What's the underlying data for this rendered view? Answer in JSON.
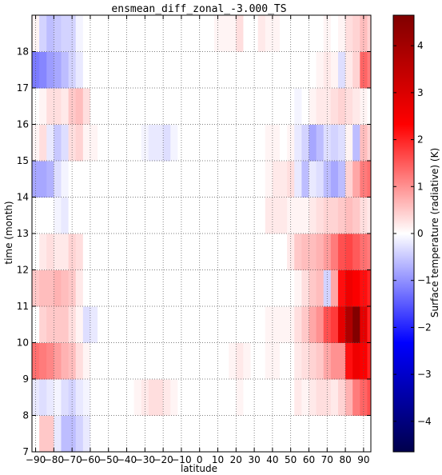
{
  "chart_data": {
    "type": "heatmap",
    "title": "ensmean_diff_zonal_-3.000_TS",
    "xlabel": "latitude",
    "ylabel": "time (month)",
    "colorbar_label": "Surface temperature (radiative) (K)",
    "colormap": "seismic",
    "colormap_stops": [
      "#00004c",
      "#0000ff",
      "#ffffff",
      "#ff0000",
      "#800000"
    ],
    "clim": [
      -4.65,
      4.65
    ],
    "xlim": [
      -92,
      94
    ],
    "ylim": [
      7,
      19
    ],
    "x_edges": [
      -92,
      -88,
      -84,
      -80,
      -76,
      -72,
      -68,
      -64,
      -60,
      -56,
      -52,
      -48,
      -44,
      -40,
      -36,
      -32,
      -28,
      -24,
      -20,
      -16,
      -12,
      -8,
      -4,
      0,
      4,
      8,
      12,
      16,
      20,
      24,
      28,
      32,
      36,
      40,
      44,
      48,
      52,
      56,
      60,
      64,
      68,
      72,
      76,
      80,
      84,
      88,
      92,
      94
    ],
    "y_edges": [
      7,
      8,
      9,
      10,
      11,
      12,
      13,
      14,
      15,
      16,
      17,
      18,
      19
    ],
    "x_ticks": [
      -90,
      -80,
      -70,
      -60,
      -50,
      -40,
      -30,
      -20,
      -10,
      0,
      10,
      20,
      30,
      40,
      50,
      60,
      70,
      80,
      90
    ],
    "x_tick_labels": [
      "−90",
      "−80",
      "−70",
      "−60",
      "−50",
      "−40",
      "−30",
      "−20",
      "−10",
      "0",
      "10",
      "20",
      "30",
      "40",
      "50",
      "60",
      "70",
      "80",
      "90"
    ],
    "y_ticks": [
      7,
      8,
      9,
      10,
      11,
      12,
      13,
      14,
      15,
      16,
      17,
      18
    ],
    "y_tick_labels": [
      "7",
      "8",
      "9",
      "10",
      "11",
      "12",
      "13",
      "14",
      "15",
      "16",
      "17",
      "18"
    ],
    "colorbar_ticks": [
      -4,
      -3,
      -2,
      -1,
      0,
      1,
      2,
      3,
      4
    ],
    "colorbar_tick_labels": [
      "−4",
      "−3",
      "−2",
      "−1",
      "0",
      "1",
      "2",
      "3",
      "4"
    ],
    "grid": true,
    "rows": [
      [
        0,
        0.5,
        0.5,
        -0.2,
        -0.6,
        -0.6,
        -0.4,
        -0.2,
        0,
        0,
        0,
        0,
        0,
        0,
        0,
        0,
        0,
        0,
        0,
        0,
        0,
        0,
        0,
        0,
        0,
        0,
        0,
        0,
        0,
        0,
        0,
        0,
        0,
        0,
        0,
        0,
        0,
        0,
        0,
        0,
        0,
        0,
        0,
        0,
        0,
        0,
        0
      ],
      [
        -0.2,
        -0.3,
        -0.2,
        -0.1,
        -0.3,
        -0.4,
        -0.2,
        -0.1,
        0,
        0,
        0,
        0,
        0,
        0,
        0.1,
        0.2,
        0.3,
        0.3,
        0.2,
        0.1,
        0,
        0,
        0,
        0,
        0,
        0,
        0,
        0,
        0.1,
        0,
        0,
        0,
        0,
        0,
        0,
        0,
        0.2,
        0.1,
        0.2,
        0.3,
        0.3,
        0.2,
        0.4,
        0.7,
        1.2,
        1.4,
        1.6
      ],
      [
        1.3,
        1.2,
        1.1,
        0.9,
        0.7,
        0.6,
        0.3,
        0.1,
        0,
        0,
        0,
        0,
        0,
        0,
        0,
        0,
        0,
        0,
        0,
        0,
        0,
        0,
        0,
        0,
        0,
        0,
        0,
        0.1,
        0.2,
        0.1,
        0,
        0,
        0.1,
        0.1,
        0,
        0,
        0.2,
        0.3,
        0.4,
        0.5,
        0.8,
        1.0,
        1.0,
        2.2,
        2.6,
        2.4,
        2.0
      ],
      [
        0,
        0.4,
        0.5,
        0.5,
        0.5,
        0.3,
        0.1,
        -0.3,
        -0.2,
        0,
        0,
        0,
        0,
        0,
        0,
        0,
        0,
        0,
        0,
        0,
        0,
        0,
        0,
        0,
        0,
        0,
        0,
        0,
        0,
        0,
        0,
        0,
        0.1,
        0.1,
        0.1,
        0.1,
        0.3,
        0.5,
        0.8,
        1.0,
        1.6,
        1.8,
        2.8,
        3.8,
        4.6,
        2.8,
        2.0
      ],
      [
        0.5,
        0.6,
        0.6,
        0.7,
        0.6,
        0.5,
        0.2,
        0,
        0,
        0,
        0,
        0,
        0,
        0,
        0,
        0,
        0,
        0,
        0,
        0,
        0,
        0,
        0,
        0,
        0,
        0,
        0,
        0,
        0,
        0,
        0,
        0,
        0,
        0,
        0,
        0,
        0.1,
        0.3,
        0.5,
        0.6,
        -0.4,
        0.8,
        2.2,
        2.6,
        2.4,
        2.2,
        2.0
      ],
      [
        0,
        0.2,
        0.3,
        0.2,
        0.2,
        0.4,
        0.3,
        0,
        0,
        0,
        0,
        0,
        0,
        0,
        0,
        0,
        0,
        0,
        0,
        0,
        0,
        0,
        0,
        0,
        0,
        0,
        0,
        0,
        0,
        0,
        0,
        0,
        0,
        0,
        0,
        0.2,
        0.5,
        0.6,
        0.6,
        0.7,
        0.9,
        1.2,
        1.6,
        1.7,
        1.5,
        1.3,
        1.2
      ],
      [
        0,
        0,
        0,
        -0.1,
        -0.2,
        0,
        0,
        0,
        0,
        0,
        0,
        0,
        0,
        0,
        0,
        0,
        0,
        0,
        0,
        0,
        0,
        0,
        0,
        0,
        0,
        0,
        0,
        0,
        0,
        0,
        0,
        0,
        0.2,
        0.2,
        0.2,
        0.1,
        0.1,
        0.1,
        0.2,
        0.3,
        0.4,
        0.4,
        0.5,
        0.6,
        0.5,
        0.3,
        0.2
      ],
      [
        -0.8,
        -0.8,
        -0.7,
        -0.3,
        -0.1,
        0,
        0,
        0,
        0,
        0,
        0,
        0,
        0,
        0,
        0,
        0,
        0,
        0,
        0,
        0,
        0,
        0,
        0,
        0,
        0,
        0,
        0,
        0,
        0,
        0,
        0,
        0,
        0.1,
        0.2,
        0.2,
        0.3,
        -0.2,
        -0.6,
        -0.2,
        -0.3,
        -0.6,
        -0.8,
        -0.6,
        0.4,
        0.8,
        1.2,
        1.3
      ],
      [
        0.1,
        0.3,
        -0.2,
        -0.5,
        -0.3,
        0.3,
        0.4,
        0.1,
        0.1,
        0,
        0,
        0,
        0,
        0,
        0,
        -0.1,
        -0.2,
        -0.2,
        -0.3,
        -0.1,
        0,
        0,
        0,
        0,
        0,
        0,
        0,
        0,
        0,
        0,
        0,
        0,
        0.1,
        0.1,
        0,
        0.1,
        -0.2,
        -0.4,
        -0.8,
        -0.6,
        -0.3,
        -0.4,
        -0.3,
        0.1,
        -0.6,
        0.6,
        0.4
      ],
      [
        0,
        0.1,
        0.3,
        0.3,
        0.2,
        0.5,
        0.6,
        0.3,
        0,
        0,
        0,
        0,
        0,
        0,
        0,
        0,
        0,
        0,
        0,
        0,
        0,
        0,
        0,
        0,
        0,
        0,
        0,
        0,
        0,
        0,
        0,
        0,
        0,
        0,
        0,
        0,
        -0.1,
        0,
        0.1,
        0.2,
        0.2,
        0.3,
        0.4,
        0.3,
        0.2,
        0.1,
        0
      ],
      [
        -1.2,
        -1.1,
        -0.9,
        -0.8,
        -0.6,
        -0.4,
        -0.2,
        0,
        0,
        0,
        0,
        0,
        0,
        0,
        0,
        0,
        0,
        0,
        0,
        0,
        0,
        0,
        0,
        0,
        0,
        0,
        0,
        0,
        0,
        0,
        0,
        0,
        0,
        0,
        0,
        0,
        0,
        0,
        0,
        0.1,
        0.2,
        0.1,
        -0.3,
        0.2,
        0.4,
        1.4,
        1.2
      ],
      [
        0.1,
        -0.4,
        -0.6,
        -0.5,
        -0.4,
        -0.4,
        -0.1,
        0,
        0,
        0,
        0,
        0,
        0,
        0,
        0,
        0,
        0,
        0,
        0,
        0,
        0,
        0,
        0,
        0,
        0,
        0.1,
        0.1,
        0.1,
        0.3,
        0,
        0,
        0.2,
        0.1,
        0.1,
        0,
        0,
        0,
        0,
        0,
        0,
        0.1,
        0,
        0.1,
        0.3,
        0.4,
        0.6,
        0.4
      ]
    ]
  }
}
